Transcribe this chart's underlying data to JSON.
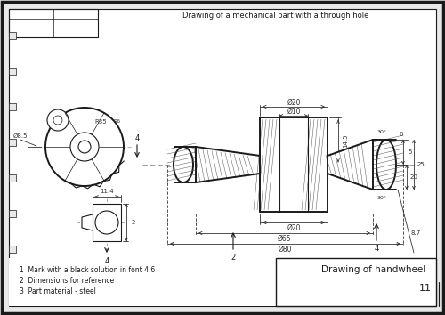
{
  "title": "Drawing of a mechanical part with a through hole",
  "title2": "Drawing of handwheel",
  "notes": [
    "1  Mark with a black solution in font 4.6",
    "2  Dimensions for reference",
    "3  Part material - steel"
  ],
  "page_num": "11",
  "bg_color": "#e8e8e8",
  "line_color": "#1a1a1a",
  "dim_color": "#333333",
  "hatch_color": "#555555",
  "border_color": "#111111",
  "white": "#ffffff"
}
